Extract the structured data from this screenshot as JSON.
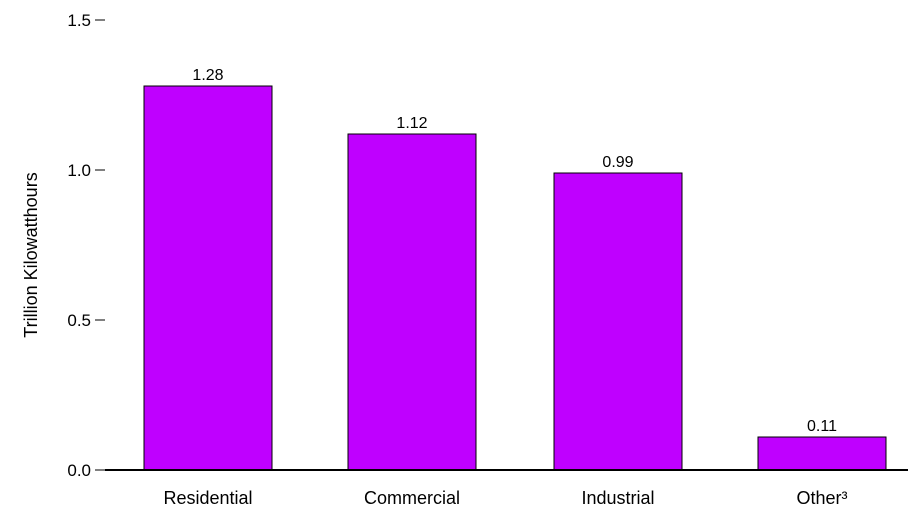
{
  "chart_data": {
    "type": "bar",
    "ylabel": "Trillion Kilowatthours",
    "xlabel": "",
    "categories": [
      "Residential",
      "Commercial",
      "Industrial",
      "Other³"
    ],
    "values": [
      1.28,
      1.12,
      0.99,
      0.11
    ],
    "value_labels": [
      "1.28",
      "1.12",
      "0.99",
      "0.11"
    ],
    "ylim": [
      0,
      1.5
    ],
    "yticks": [
      0,
      0.5,
      1.0,
      1.5
    ],
    "ytick_labels": [
      "0.0",
      "0.5",
      "1.0",
      "1.5"
    ],
    "grid": false,
    "bar_color": "#bf00ff",
    "bar_edge_color": "#000000"
  }
}
